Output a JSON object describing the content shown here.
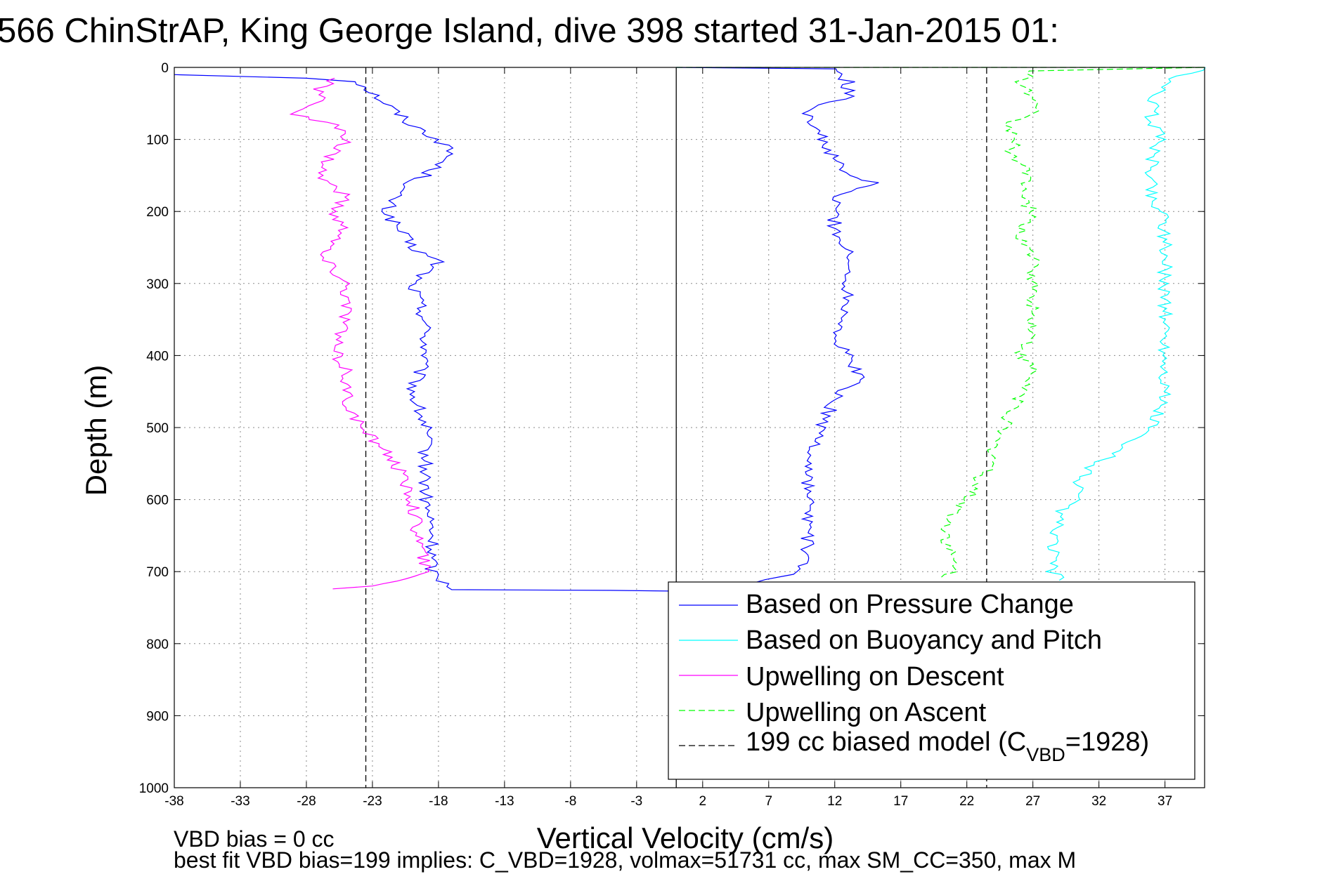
{
  "chart_data": {
    "type": "line",
    "title": "566 ChinStrAP, King George Island, dive 398 started 31-Jan-2015 01:",
    "xlabel": "Vertical Velocity (cm/s)",
    "ylabel": "Depth (m)",
    "xlim": [
      -38,
      40
    ],
    "ylim": [
      0,
      1000
    ],
    "y_reversed": true,
    "grid": true,
    "xticks": [
      -38,
      -33,
      -28,
      -23,
      -18,
      -13,
      -8,
      -3,
      2,
      7,
      12,
      17,
      22,
      27,
      32,
      37
    ],
    "xtick_labels": [
      "-38",
      "-33",
      "-28",
      "-23",
      "-18",
      "-13",
      "-8",
      "-3",
      "2",
      "7",
      "12",
      "17",
      "22",
      "27",
      "32",
      "37"
    ],
    "yticks": [
      0,
      100,
      200,
      300,
      400,
      500,
      600,
      700,
      800,
      900,
      1000
    ],
    "ytick_labels": [
      "0",
      "100",
      "200",
      "300",
      "400",
      "500",
      "600",
      "700",
      "800",
      "900",
      "1000"
    ],
    "legend_position": "bottom-right",
    "legend": [
      {
        "label": "Based on Pressure Change",
        "color": "#0000ff",
        "style": "solid"
      },
      {
        "label": "Based on Buoyancy and Pitch",
        "color": "#00ffff",
        "style": "solid"
      },
      {
        "label": "Upwelling on Descent",
        "color": "#ff00ff",
        "style": "solid"
      },
      {
        "label": "Upwelling on Ascent",
        "color": "#00ff00",
        "style": "dashed"
      },
      {
        "label": "199 cc biased model (C",
        "label_sub": "VBD",
        "label_tail": "=1928)",
        "color": "#000000",
        "style": "dashed"
      }
    ],
    "vertical_lines": [
      {
        "x": 0,
        "color": "#000000",
        "style": "solid"
      },
      {
        "x": -23.5,
        "color": "#000000",
        "style": "dashed"
      },
      {
        "x": 23.5,
        "color": "#000000",
        "style": "dashed"
      }
    ],
    "series": [
      {
        "key": "pressure_descent",
        "color": "#0000ff",
        "style": "solid",
        "points": [
          [
            -38,
            10
          ],
          [
            -28,
            15
          ],
          [
            -24,
            20
          ],
          [
            -22,
            50
          ],
          [
            -20,
            80
          ],
          [
            -18,
            100
          ],
          [
            -17,
            120
          ],
          [
            -19,
            150
          ],
          [
            -21,
            170
          ],
          [
            -22,
            200
          ],
          [
            -20,
            250
          ],
          [
            -18,
            270
          ],
          [
            -20,
            300
          ],
          [
            -19,
            350
          ],
          [
            -19,
            400
          ],
          [
            -20,
            450
          ],
          [
            -19,
            500
          ],
          [
            -19,
            550
          ],
          [
            -19,
            600
          ],
          [
            -18.5,
            650
          ],
          [
            -18.5,
            700
          ],
          [
            -17,
            725
          ],
          [
            -5,
            726
          ],
          [
            -0.5,
            727
          ]
        ]
      },
      {
        "key": "pressure_ascent",
        "color": "#0000ff",
        "style": "solid",
        "points": [
          [
            0,
            0
          ],
          [
            12,
            2
          ],
          [
            13,
            20
          ],
          [
            13,
            40
          ],
          [
            10,
            60
          ],
          [
            11,
            100
          ],
          [
            12,
            130
          ],
          [
            13,
            150
          ],
          [
            15,
            160
          ],
          [
            12,
            180
          ],
          [
            12,
            220
          ],
          [
            13,
            260
          ],
          [
            13,
            300
          ],
          [
            13,
            340
          ],
          [
            12,
            380
          ],
          [
            13,
            400
          ],
          [
            14,
            430
          ],
          [
            12,
            460
          ],
          [
            11,
            500
          ],
          [
            10,
            550
          ],
          [
            10,
            600
          ],
          [
            10,
            650
          ],
          [
            9.5,
            700
          ],
          [
            6,
            715
          ]
        ]
      },
      {
        "key": "buoyancy_pitch",
        "color": "#00ffff",
        "style": "solid",
        "points": [
          [
            40,
            0
          ],
          [
            37,
            20
          ],
          [
            36,
            50
          ],
          [
            36,
            80
          ],
          [
            37,
            100
          ],
          [
            36,
            120
          ],
          [
            36,
            150
          ],
          [
            36,
            190
          ],
          [
            37,
            200
          ],
          [
            37,
            250
          ],
          [
            37,
            300
          ],
          [
            37,
            350
          ],
          [
            37,
            400
          ],
          [
            37,
            450
          ],
          [
            36,
            500
          ],
          [
            34,
            520
          ],
          [
            33,
            540
          ],
          [
            31,
            560
          ],
          [
            30,
            600
          ],
          [
            29,
            620
          ],
          [
            28.5,
            650
          ],
          [
            28.5,
            700
          ],
          [
            29,
            712
          ]
        ]
      },
      {
        "key": "upwelling_descent",
        "color": "#ff00ff",
        "style": "solid",
        "points": [
          [
            -26,
            15
          ],
          [
            -27,
            30
          ],
          [
            -27,
            50
          ],
          [
            -29,
            65
          ],
          [
            -26,
            80
          ],
          [
            -25,
            100
          ],
          [
            -26,
            120
          ],
          [
            -27,
            150
          ],
          [
            -25,
            180
          ],
          [
            -26,
            200
          ],
          [
            -25,
            230
          ],
          [
            -27,
            260
          ],
          [
            -25,
            300
          ],
          [
            -25,
            350
          ],
          [
            -26,
            390
          ],
          [
            -25,
            420
          ],
          [
            -25,
            460
          ],
          [
            -24,
            500
          ],
          [
            -22,
            530
          ],
          [
            -21,
            560
          ],
          [
            -20,
            600
          ],
          [
            -19.5,
            650
          ],
          [
            -19,
            700
          ],
          [
            -20,
            710
          ],
          [
            -23,
            720
          ],
          [
            -26,
            724
          ]
        ]
      },
      {
        "key": "upwelling_ascent",
        "color": "#00ff00",
        "style": "dashed",
        "points": [
          [
            0,
            0
          ],
          [
            40,
            0
          ],
          [
            27,
            5
          ],
          [
            26,
            20
          ],
          [
            27,
            40
          ],
          [
            27,
            60
          ],
          [
            25,
            80
          ],
          [
            26,
            100
          ],
          [
            25,
            120
          ],
          [
            27,
            150
          ],
          [
            26,
            180
          ],
          [
            27,
            200
          ],
          [
            26,
            230
          ],
          [
            27,
            260
          ],
          [
            27,
            290
          ],
          [
            27,
            330
          ],
          [
            27,
            370
          ],
          [
            26,
            400
          ],
          [
            27,
            420
          ],
          [
            26,
            460
          ],
          [
            25,
            490
          ],
          [
            24,
            520
          ],
          [
            24,
            550
          ],
          [
            23,
            570
          ],
          [
            22,
            600
          ],
          [
            20.5,
            630
          ],
          [
            20.5,
            660
          ],
          [
            21,
            700
          ],
          [
            20,
            712
          ]
        ]
      }
    ]
  },
  "notes": {
    "line1": "VBD bias = 0 cc",
    "line2": "best fit VBD bias=199 implies: C_VBD=1928, volmax=51731 cc, max SM_CC=350, max M"
  }
}
